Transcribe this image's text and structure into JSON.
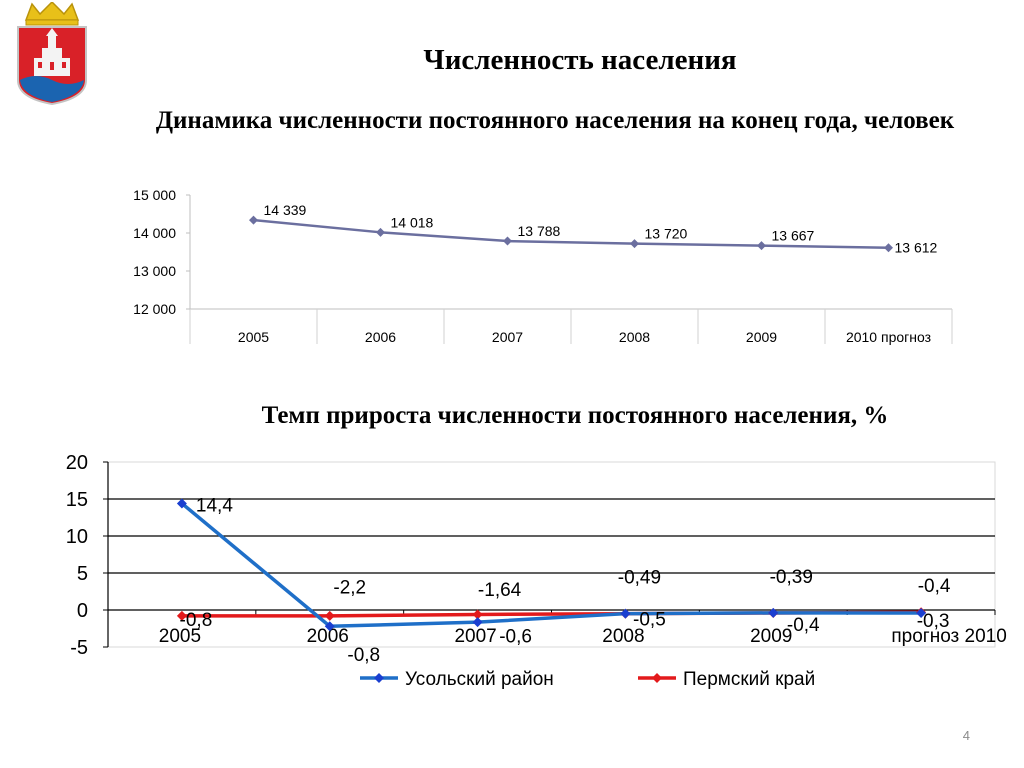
{
  "slide": {
    "title": "Численность населения",
    "page_number": "4"
  },
  "emblem": {
    "icon": "coat-of-arms-icon",
    "colors": {
      "shield": "#d92128",
      "crown": "#e8c019",
      "water": "#1b64b0"
    }
  },
  "chart_data": [
    {
      "type": "line",
      "title": "Динамика численности постоянного населения на конец года, человек",
      "categories": [
        "2005",
        "2006",
        "2007",
        "2008",
        "2009",
        "2010 прогноз"
      ],
      "series": [
        {
          "values": [
            14339,
            14018,
            13788,
            13720,
            13667,
            13612
          ],
          "labels": [
            "14 339",
            "14 018",
            "13 788",
            "13 720",
            "13 667",
            "13 612"
          ],
          "color": "#6b6f9f"
        }
      ],
      "ylim": [
        12000,
        15000
      ],
      "yticks": [
        "12 000",
        "13 000",
        "14 000",
        "15 000"
      ],
      "xlabel": "",
      "ylabel": "",
      "grid": "vertical category separators"
    },
    {
      "type": "line",
      "title": "Темп прироста численности постоянного населения, %",
      "categories": [
        "2005",
        "2006",
        "2007",
        "2008",
        "2009",
        "прогноз 2010"
      ],
      "series": [
        {
          "name": "Усольский район",
          "values": [
            14.4,
            -2.2,
            -1.64,
            -0.49,
            -0.39,
            -0.4
          ],
          "labels": [
            "14,4",
            "-2,2",
            "-1,64",
            "-0,49",
            "-0,39",
            "-0,4"
          ],
          "color": "#1f6fc8"
        },
        {
          "name": "Пермский край",
          "values": [
            -0.8,
            -0.8,
            -0.6,
            -0.5,
            -0.4,
            -0.3
          ],
          "labels": [
            "-0,8",
            "-0,8",
            "-0,6",
            "-0,5",
            "-0,4",
            "-0,3"
          ],
          "color": "#e31a1c"
        }
      ],
      "ylim": [
        -5,
        20
      ],
      "yticks": [
        "-5",
        "0",
        "5",
        "10",
        "15",
        "20"
      ],
      "xlabel": "",
      "ylabel": "",
      "legend": "bottom",
      "grid": "horizontal"
    }
  ]
}
